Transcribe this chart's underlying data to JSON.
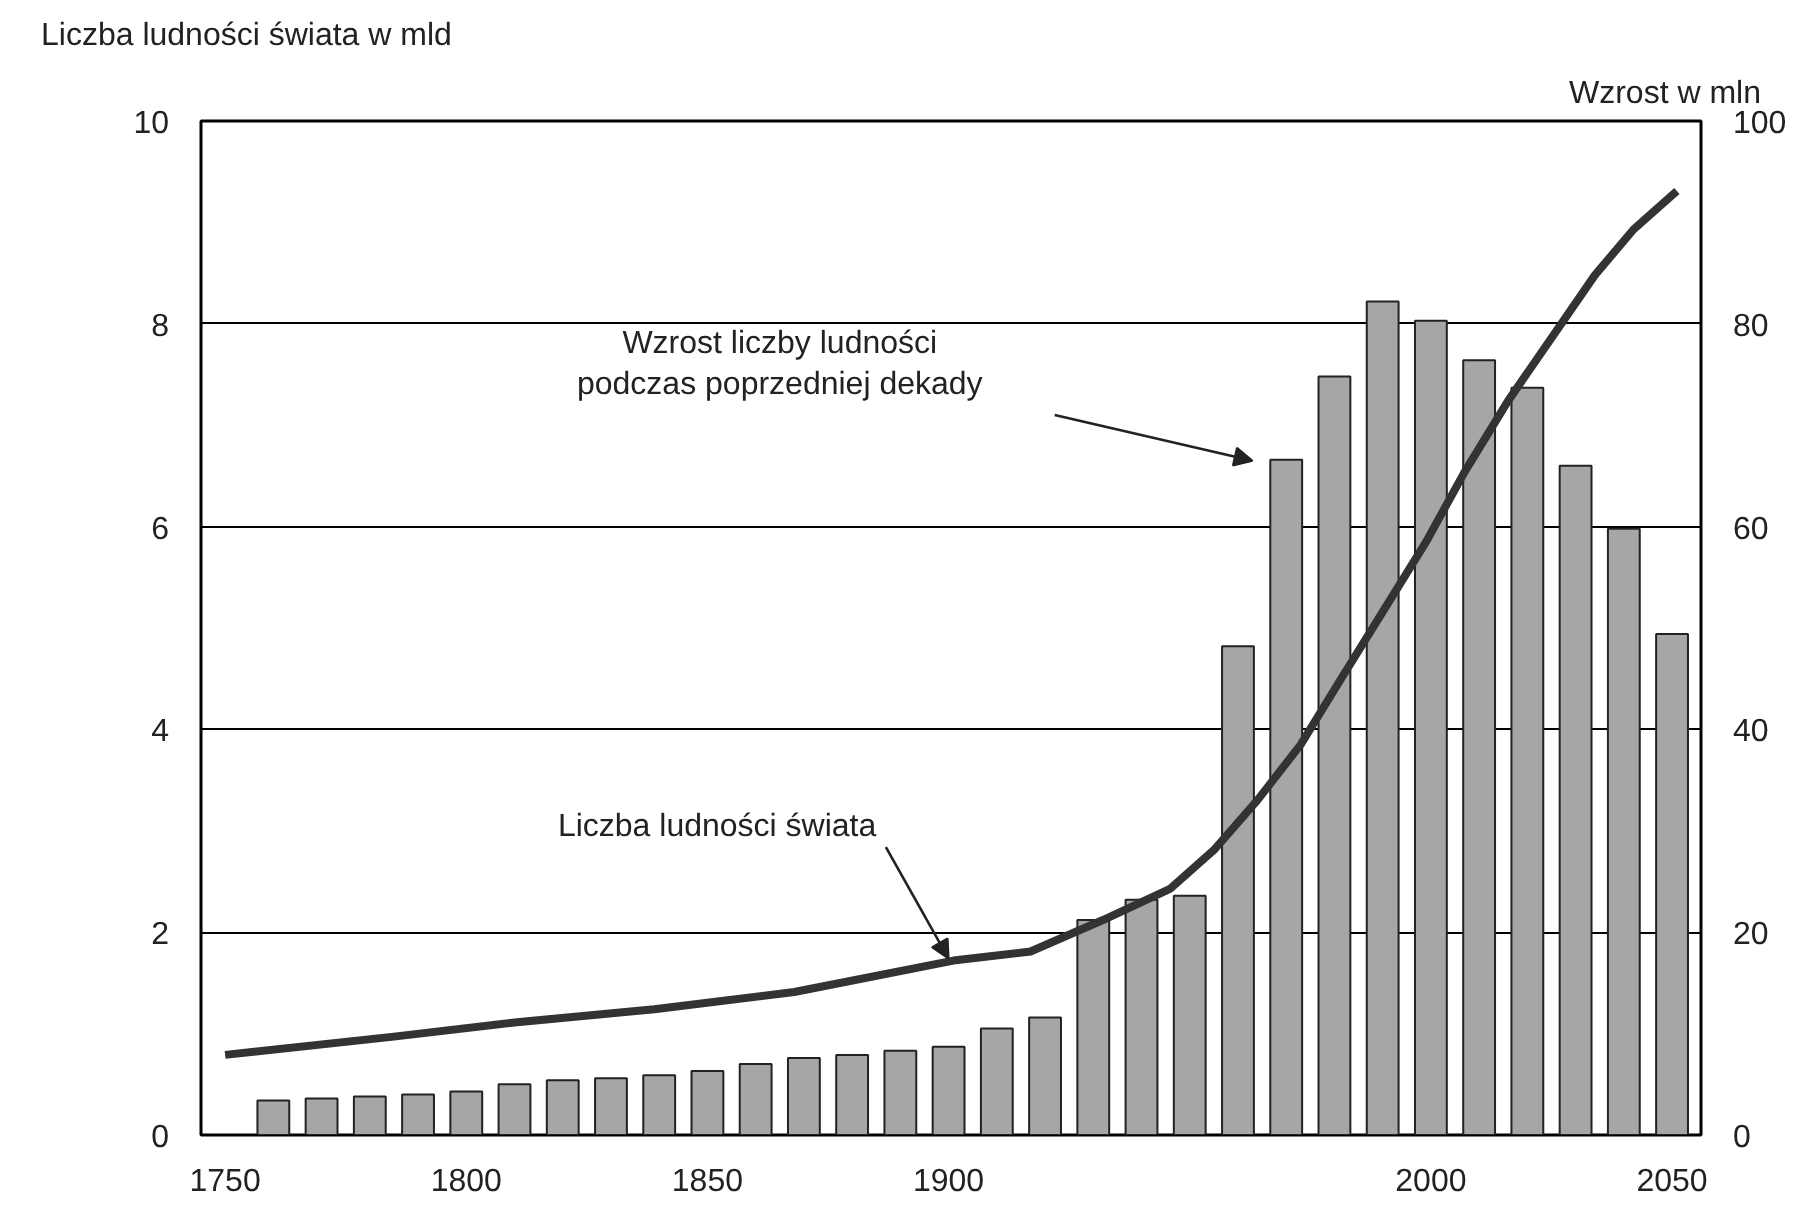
{
  "chart_data": {
    "type": "bar",
    "ylabel": "Liczba ludności świata w mld",
    "y2label": "Wzrost w mln",
    "x": [
      1760,
      1770,
      1780,
      1790,
      1800,
      1810,
      1820,
      1830,
      1840,
      1850,
      1860,
      1870,
      1880,
      1890,
      1900,
      1910,
      1920,
      1930,
      1940,
      1950,
      1960,
      1970,
      1980,
      1990,
      2000,
      2010,
      2020,
      2030,
      2040,
      2050
    ],
    "series": [
      {
        "axis": "y2",
        "color": "#a6a6a6",
        "values": [
          3.4,
          3.6,
          3.8,
          4.0,
          4.3,
          5.0,
          5.4,
          5.6,
          5.9,
          6.3,
          7.0,
          7.6,
          7.9,
          8.3,
          8.7,
          10.5,
          11.6,
          21.2,
          23.2,
          23.6,
          48.2,
          66.6,
          74.8,
          82.2,
          80.3,
          76.4,
          73.7,
          66.0,
          59.8,
          49.4
        ]
      },
      {
        "type": "line",
        "color": "#333333",
        "x": [
          1750,
          1785,
          1810,
          1839,
          1868,
          1901,
          1917,
          1932,
          1946,
          1955,
          1964,
          1973,
          1981,
          1990,
          1999,
          2007,
          2016,
          2025,
          2034,
          2042,
          2051
        ],
        "values": [
          0.79,
          0.97,
          1.11,
          1.24,
          1.41,
          1.72,
          1.81,
          2.12,
          2.43,
          2.81,
          3.3,
          3.85,
          4.47,
          5.16,
          5.85,
          6.54,
          7.24,
          7.86,
          8.48,
          8.93,
          9.31
        ]
      }
    ],
    "xlim": [
      1745,
      2056
    ],
    "xticks": [
      1750,
      1800,
      1850,
      1900,
      2000,
      2050
    ],
    "ylim": [
      0,
      10
    ],
    "yticks": [
      0,
      2,
      4,
      6,
      8,
      10
    ],
    "y2lim": [
      0,
      100
    ],
    "y2ticks": [
      0,
      20,
      40,
      60,
      80,
      100
    ],
    "grid": "y",
    "line_style": "solid",
    "annotations": [
      {
        "text": "Liczba ludności świata",
        "x": 1900,
        "y": 1.74
      },
      "Wzrost liczby ludności\npodczas poprzedniej dekady"
    ]
  }
}
